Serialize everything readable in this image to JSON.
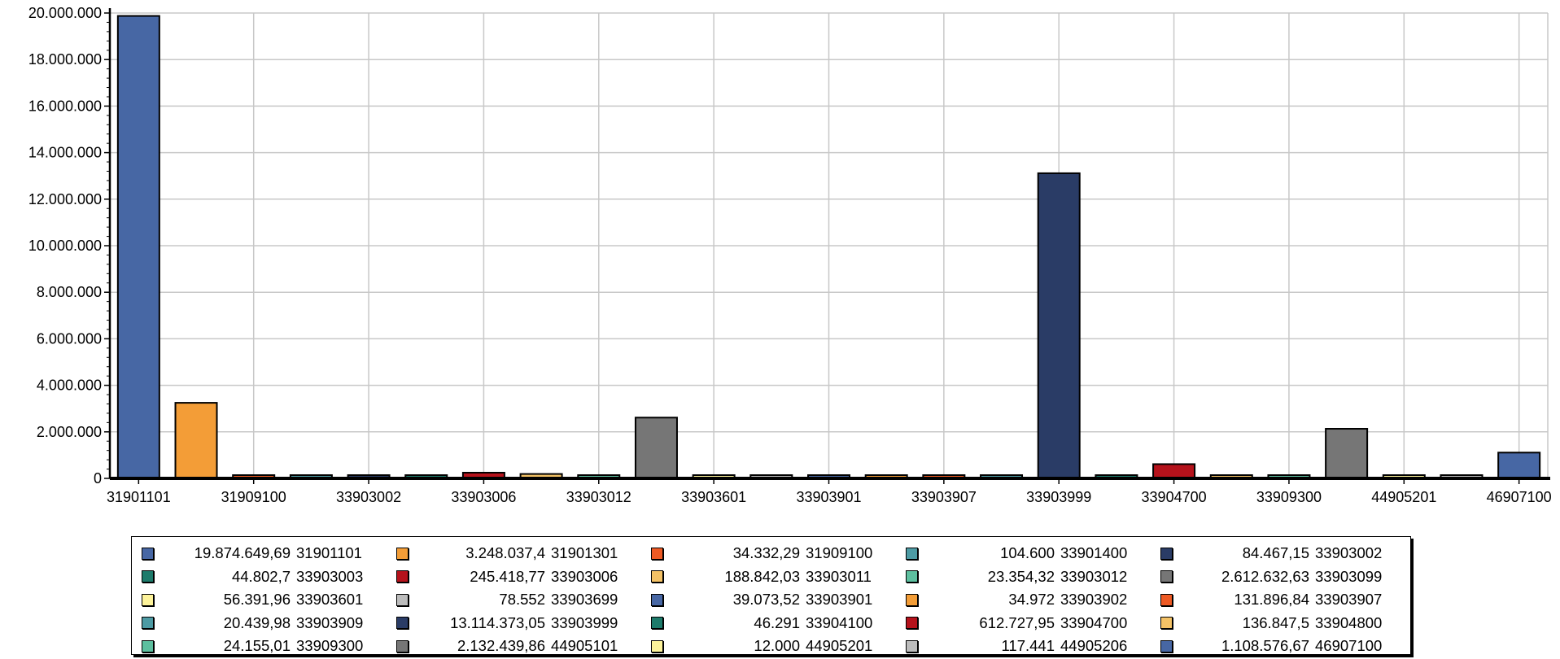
{
  "chart_data": {
    "type": "bar",
    "ylim": [
      0,
      20000000
    ],
    "y_ticks": [
      "0",
      "2.000.000",
      "4.000.000",
      "6.000.000",
      "8.000.000",
      "10.000.000",
      "12.000.000",
      "14.000.000",
      "16.000.000",
      "18.000.000",
      "20.000.000"
    ],
    "x_tick_labels": [
      "31901101",
      "31909100",
      "33903002",
      "33903006",
      "33903012",
      "33903601",
      "33903901",
      "33903907",
      "33903999",
      "33904700",
      "33909300",
      "44905201",
      "46907100"
    ],
    "grid": true,
    "legend_placement": "bottom",
    "categories": [
      "31901101",
      "31901301",
      "31909100",
      "33901400",
      "33903002",
      "33903003",
      "33903006",
      "33903011",
      "33903012",
      "33903099",
      "33903601",
      "33903699",
      "33903901",
      "33903902",
      "33903907",
      "33903909",
      "33903999",
      "33904100",
      "33904700",
      "33904800",
      "33909300",
      "44905101",
      "44905201",
      "44905206",
      "46907100"
    ],
    "values": [
      19874649.69,
      3248037.4,
      34332.29,
      104600,
      84467.15,
      44802.7,
      245418.77,
      188842.03,
      23354.32,
      2612632.63,
      56391.96,
      78552,
      39073.52,
      34972,
      131896.84,
      20439.98,
      13114373.05,
      46291,
      612727.95,
      136847.5,
      24155.01,
      2132439.86,
      12000,
      117441,
      1108576.67
    ],
    "value_labels": [
      "19.874.649,69",
      "3.248.037,4",
      "34.332,29",
      "104.600",
      "84.467,15",
      "44.802,7",
      "245.418,77",
      "188.842,03",
      "23.354,32",
      "2.612.632,63",
      "56.391,96",
      "78.552",
      "39.073,52",
      "34.972",
      "131.896,84",
      "20.439,98",
      "13.114.373,05",
      "46.291",
      "612.727,95",
      "136.847,5",
      "24.155,01",
      "2.132.439,86",
      "12.000",
      "117.441",
      "1.108.576,67"
    ],
    "colors": [
      "#4767a4",
      "#f39d37",
      "#ee5a24",
      "#4d9ba4",
      "#2a3c66",
      "#1d7b6b",
      "#b5121b",
      "#f4c266",
      "#5dbf9f",
      "#767676",
      "#fdf39a",
      "#bcbcbc",
      "#4767a4",
      "#f39d37",
      "#ee5a24",
      "#4d9ba4",
      "#2a3c66",
      "#1d7b6b",
      "#b5121b",
      "#f4c266",
      "#5dbf9f",
      "#767676",
      "#fdf39a",
      "#bcbcbc",
      "#4767a4"
    ]
  }
}
